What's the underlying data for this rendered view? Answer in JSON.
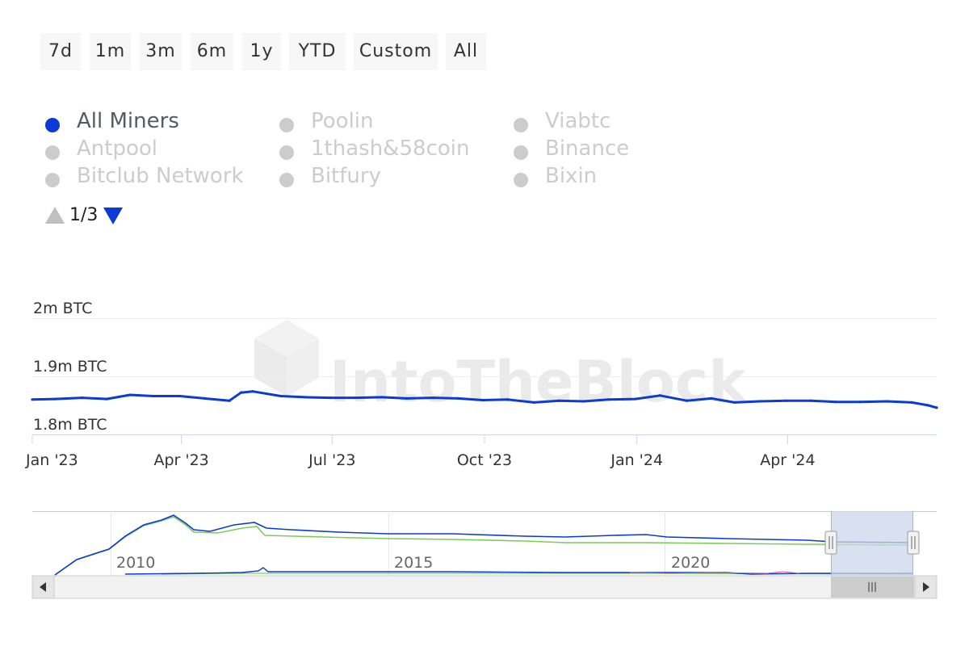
{
  "range_selector": {
    "buttons": [
      "7d",
      "1m",
      "3m",
      "6m",
      "1y",
      "YTD",
      "Custom",
      "All"
    ]
  },
  "legend": {
    "items": [
      {
        "label": "All Miners",
        "active": true
      },
      {
        "label": "Poolin",
        "active": false
      },
      {
        "label": "Viabtc",
        "active": false
      },
      {
        "label": "Antpool",
        "active": false
      },
      {
        "label": "1thash&58coin",
        "active": false
      },
      {
        "label": "Binance",
        "active": false
      },
      {
        "label": "Bitclub Network",
        "active": false
      },
      {
        "label": "Bitfury",
        "active": false
      },
      {
        "label": "Bixin",
        "active": false
      }
    ],
    "pager": "1/3"
  },
  "watermark": "IntoTheBlock",
  "colors": {
    "series": "#0b3bd4",
    "navigator_secondary": "#7ccc5a",
    "inactive": "#cccccc",
    "navigator_selection": "#ccd6eb"
  },
  "chart_data": {
    "type": "line",
    "series": [
      {
        "name": "All Miners",
        "x": [
          "2023-01-01",
          "2023-01-15",
          "2023-01-31",
          "2023-02-15",
          "2023-03-01",
          "2023-03-15",
          "2023-03-31",
          "2023-04-15",
          "2023-04-30",
          "2023-05-07",
          "2023-05-14",
          "2023-05-31",
          "2023-06-15",
          "2023-06-30",
          "2023-07-15",
          "2023-07-31",
          "2023-08-15",
          "2023-08-31",
          "2023-09-15",
          "2023-09-30",
          "2023-10-15",
          "2023-10-31",
          "2023-11-15",
          "2023-11-30",
          "2023-12-15",
          "2023-12-31",
          "2024-01-15",
          "2024-01-31",
          "2024-02-15",
          "2024-02-29",
          "2024-03-15",
          "2024-03-31",
          "2024-04-15",
          "2024-04-30",
          "2024-05-15",
          "2024-05-31",
          "2024-06-15",
          "2024-06-25",
          "2024-06-30"
        ],
        "y": [
          1.86,
          1.861,
          1.863,
          1.861,
          1.868,
          1.866,
          1.866,
          1.862,
          1.858,
          1.872,
          1.874,
          1.866,
          1.864,
          1.863,
          1.863,
          1.864,
          1.862,
          1.863,
          1.862,
          1.859,
          1.86,
          1.855,
          1.858,
          1.857,
          1.86,
          1.861,
          1.867,
          1.858,
          1.862,
          1.855,
          1.857,
          1.858,
          1.858,
          1.856,
          1.856,
          1.857,
          1.855,
          1.85,
          1.846
        ]
      }
    ],
    "y_ticks": [
      "1.8m BTC",
      "1.9m BTC",
      "2m BTC"
    ],
    "y_tick_values": [
      1.8,
      1.9,
      2.0
    ],
    "ylim": [
      1.8,
      2.0
    ],
    "x_ticks": [
      "Jan '23",
      "Apr '23",
      "Jul '23",
      "Oct '23",
      "Jan '24",
      "Apr '24"
    ],
    "x_tick_dates": [
      "2023-01-01",
      "2023-04-01",
      "2023-07-01",
      "2023-10-01",
      "2024-01-01",
      "2024-04-01"
    ],
    "xlim": [
      "2023-01-01",
      "2024-06-30"
    ],
    "grid": true,
    "navigator": {
      "x_ticks": [
        "2010",
        "2015",
        "2020"
      ],
      "selected_range": [
        "2023-01-01",
        "2024-06-30"
      ]
    }
  }
}
